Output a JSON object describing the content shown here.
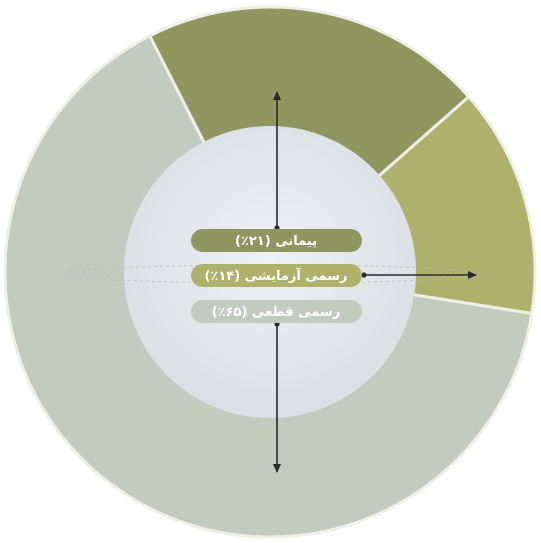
{
  "chart_data": {
    "type": "pie",
    "donut": true,
    "title": "",
    "series": [
      {
        "name": "پیمانی",
        "label": "پیمانی (۲۱٪)",
        "value": 21,
        "color": "#8f9660"
      },
      {
        "name": "رسمی آزمایشی",
        "label": "رسمی آزمایشی (۱۴٪)",
        "value": 14,
        "color": "#b0b16c"
      },
      {
        "name": "رسمی قطعی",
        "label": "رسمی قطعی (۶۵٪)",
        "value": 65,
        "color": "#c3cabe"
      }
    ],
    "center_color": "#e1e5ea",
    "legend": "center"
  }
}
